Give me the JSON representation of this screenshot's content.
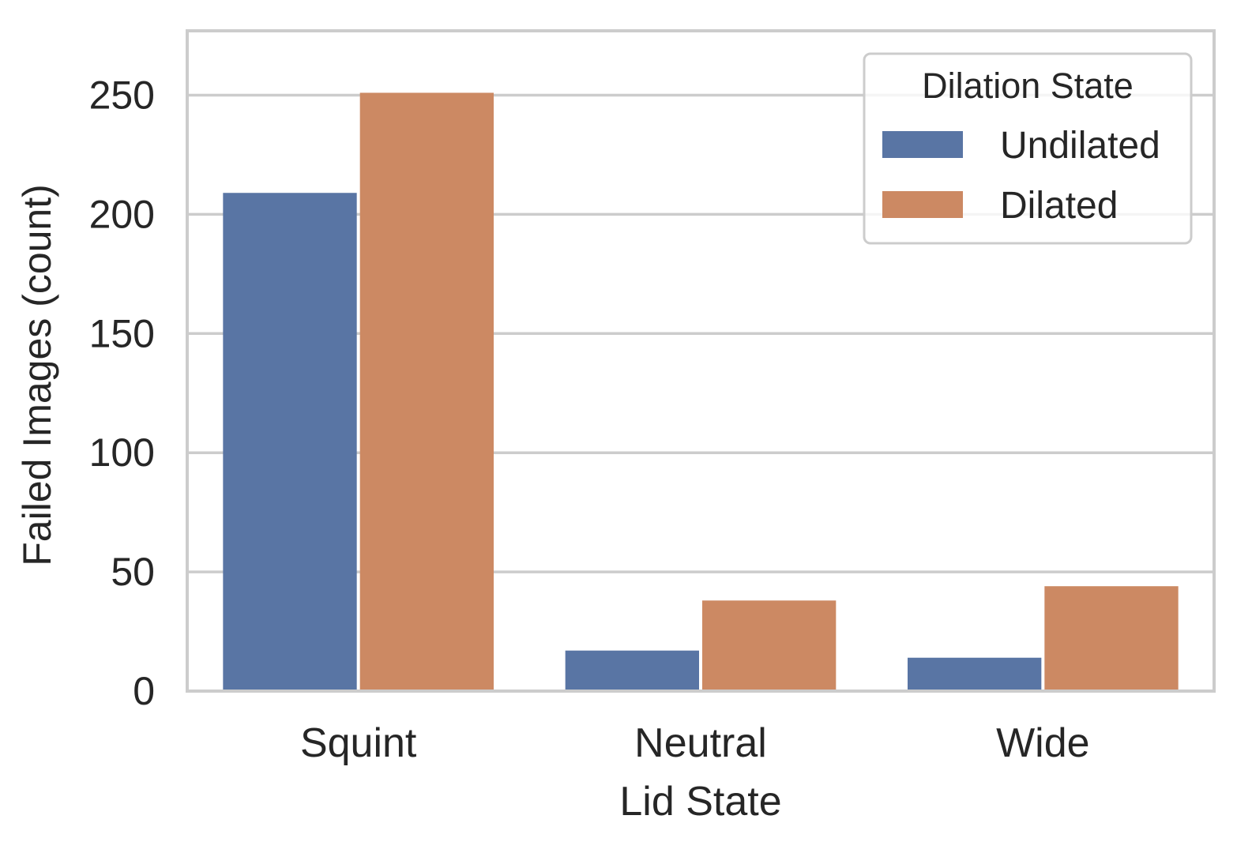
{
  "chart_data": {
    "type": "bar",
    "categories": [
      "Squint",
      "Neutral",
      "Wide"
    ],
    "series": [
      {
        "name": "Undilated",
        "values": [
          209,
          17,
          14
        ],
        "color": "#5975a4"
      },
      {
        "name": "Dilated",
        "values": [
          251,
          38,
          44
        ],
        "color": "#cc8963"
      }
    ],
    "xlabel": "Lid State",
    "ylabel": "Failed Images (count)",
    "ylim": [
      0,
      277
    ],
    "yticks": [
      0,
      50,
      100,
      150,
      200,
      250
    ],
    "grid": "horizontal",
    "legend": {
      "title": "Dilation State",
      "placement": "top-right"
    },
    "colors": {
      "grid": "#cccccc",
      "frame": "#cccccc",
      "text": "#262626"
    }
  }
}
